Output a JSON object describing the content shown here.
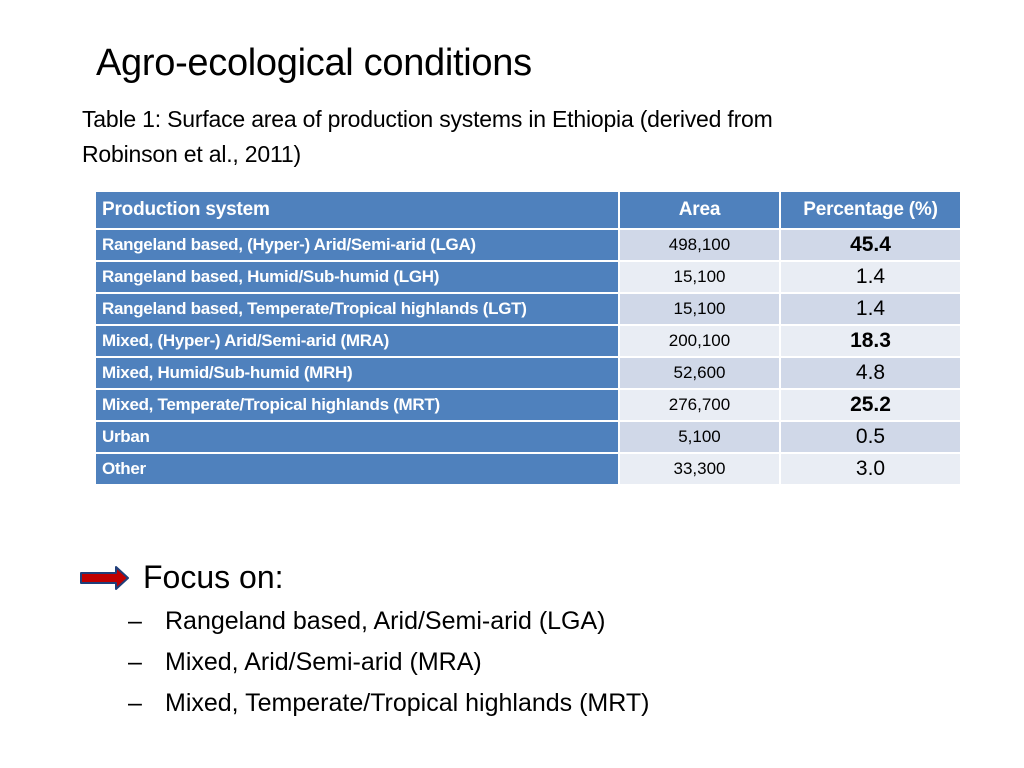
{
  "title": "Agro-ecological conditions",
  "caption": {
    "line1": "Table 1: Surface area of production systems in Ethiopia (derived from",
    "line2": "Robinson et al., 2011)"
  },
  "table": {
    "headers": [
      "Production system",
      "Area",
      "Percentage (%)"
    ],
    "rows": [
      {
        "system": "Rangeland based, (Hyper-) Arid/Semi-arid (LGA)",
        "area": "498,100",
        "pct": "45.4",
        "bold": true
      },
      {
        "system": "Rangeland based, Humid/Sub-humid (LGH)",
        "area": "15,100",
        "pct": "1.4",
        "bold": false
      },
      {
        "system": "Rangeland based, Temperate/Tropical highlands (LGT)",
        "area": "15,100",
        "pct": "1.4",
        "bold": false
      },
      {
        "system": "Mixed, (Hyper-) Arid/Semi-arid (MRA)",
        "area": "200,100",
        "pct": "18.3",
        "bold": true
      },
      {
        "system": "Mixed, Humid/Sub-humid (MRH)",
        "area": "52,600",
        "pct": "4.8",
        "bold": false
      },
      {
        "system": "Mixed, Temperate/Tropical highlands (MRT)",
        "area": "276,700",
        "pct": "25.2",
        "bold": true
      },
      {
        "system": "Urban",
        "area": "5,100",
        "pct": "0.5",
        "bold": false
      },
      {
        "system": "Other",
        "area": "33,300",
        "pct": "3.0",
        "bold": false
      }
    ]
  },
  "focus": {
    "icon": "arrow-right-icon",
    "label": "Focus on:",
    "items": [
      "Rangeland based, Arid/Semi-arid (LGA)",
      "Mixed, Arid/Semi-arid (MRA)",
      "Mixed, Temperate/Tropical highlands (MRT)"
    ],
    "bullet": "–"
  },
  "colors": {
    "header_fill": "#4f81bd",
    "row_odd": "#d0d8e8",
    "row_even": "#e9edf4",
    "arrow_fill": "#c00000",
    "arrow_outline": "#1f3f7a"
  }
}
